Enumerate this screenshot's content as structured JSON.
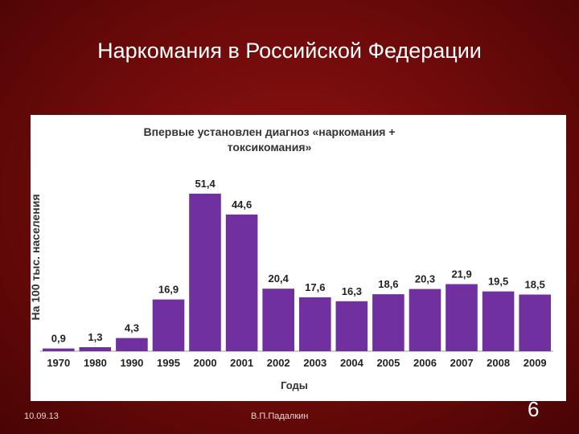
{
  "slide": {
    "title": "Наркомания в Российской Федерации",
    "date": "10.09.13",
    "author": "В.П.Падалкин",
    "number": "6"
  },
  "colors": {
    "background": "#7a0c0c",
    "bar": "#7030a0",
    "panel": "#ffffff"
  },
  "chart_data": {
    "type": "bar",
    "title_lines": [
      "Впервые установлен диагноз «наркомания +",
      "токсикомания»"
    ],
    "ylabel": "На 100 тыс. населения",
    "xlabel": "Годы",
    "categories": [
      "1970",
      "1980",
      "1990",
      "1995",
      "2000",
      "2001",
      "2002",
      "2003",
      "2004",
      "2005",
      "2006",
      "2007",
      "2008",
      "2009"
    ],
    "values": [
      0.9,
      1.3,
      4.3,
      16.9,
      51.4,
      44.6,
      20.4,
      17.6,
      16.3,
      18.6,
      20.3,
      21.9,
      19.5,
      18.5
    ],
    "value_labels": [
      "0,9",
      "1,3",
      "4,3",
      "16,9",
      "51,4",
      "44,6",
      "20,4",
      "17,6",
      "16,3",
      "18,6",
      "20,3",
      "21,9",
      "19,5",
      "18,5"
    ],
    "ylim": [
      0,
      60
    ],
    "grid": false,
    "legend": "none"
  }
}
